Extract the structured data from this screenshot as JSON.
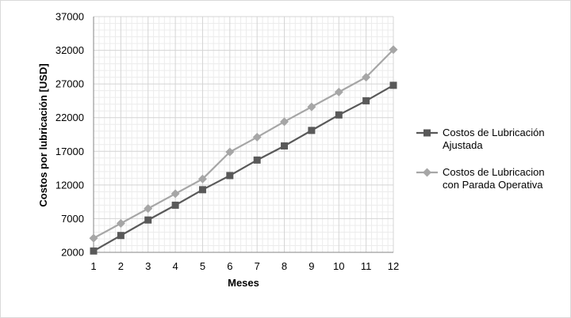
{
  "chart_data": {
    "type": "line",
    "xlabel": "Meses",
    "ylabel": "Costos  por lubricación [USD]",
    "x": [
      1,
      2,
      3,
      4,
      5,
      6,
      7,
      8,
      9,
      10,
      11,
      12
    ],
    "ylim": [
      2000,
      37000
    ],
    "yticks": [
      2000,
      7000,
      12000,
      17000,
      22000,
      27000,
      32000,
      37000
    ],
    "grid": true,
    "legend_position": "right",
    "series": [
      {
        "name_lines": [
          "Costos de Lubricación",
          "Ajustada"
        ],
        "marker": "square",
        "color": "#595959",
        "values": [
          2200,
          4500,
          6800,
          9000,
          11300,
          13400,
          15700,
          17800,
          20100,
          22400,
          24500,
          26800
        ]
      },
      {
        "name_lines": [
          "Costos de Lubricacion",
          "con Parada Operativa"
        ],
        "marker": "diamond",
        "color": "#a6a6a6",
        "values": [
          4100,
          6300,
          8500,
          10700,
          12900,
          16900,
          19100,
          21400,
          23600,
          25800,
          28000,
          32100
        ]
      }
    ]
  }
}
